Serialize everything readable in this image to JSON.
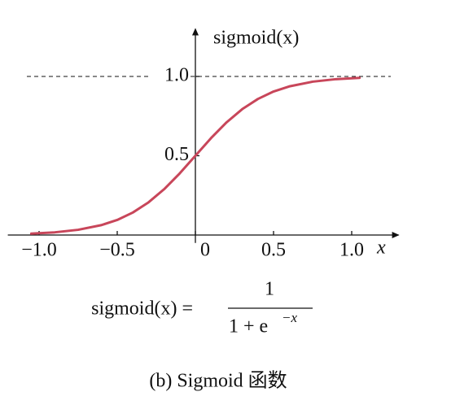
{
  "chart_data": {
    "type": "line",
    "y_label": "sigmoid(x)",
    "x_label": "x",
    "x": [
      -1.05,
      -0.9,
      -0.75,
      -0.6,
      -0.5,
      -0.4,
      -0.3,
      -0.2,
      -0.1,
      0,
      0.1,
      0.2,
      0.3,
      0.4,
      0.5,
      0.6,
      0.75,
      0.9,
      1.05
    ],
    "y": [
      0.009,
      0.017,
      0.033,
      0.063,
      0.095,
      0.142,
      0.206,
      0.289,
      0.389,
      0.5,
      0.611,
      0.711,
      0.794,
      0.858,
      0.905,
      0.937,
      0.967,
      0.983,
      0.991
    ],
    "color": "#c8465a",
    "xlim": [
      -1.2,
      1.3
    ],
    "ylim": [
      -0.05,
      1.3
    ],
    "xticks": [
      {
        "value": -1,
        "label": "−1.0"
      },
      {
        "value": -0.5,
        "label": "−0.5"
      },
      0,
      0.5,
      {
        "value": 1,
        "label": "1.0"
      }
    ],
    "yticks": [
      0.5,
      {
        "value": 1,
        "label": "1.0"
      }
    ],
    "asymptote_dashed": true,
    "formula": {
      "lhs": "sigmoid(x) =",
      "numerator": "1",
      "denominator": "1 + e",
      "exponent": "−x"
    },
    "caption": "(b) Sigmoid 函数"
  }
}
